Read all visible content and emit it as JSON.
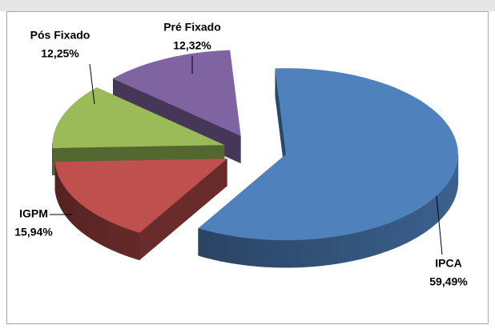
{
  "chart_data": {
    "type": "pie3d",
    "categories": [
      "IPCA",
      "IGPM",
      "Pós Fixado",
      "Pré Fixado"
    ],
    "values": [
      59.49,
      15.94,
      12.25,
      12.32
    ],
    "value_labels": [
      "59,49%",
      "15,94%",
      "12,25%",
      "12,32%"
    ],
    "colors": [
      "#4f81bd",
      "#c0504d",
      "#9bbb59",
      "#8064a2"
    ]
  }
}
